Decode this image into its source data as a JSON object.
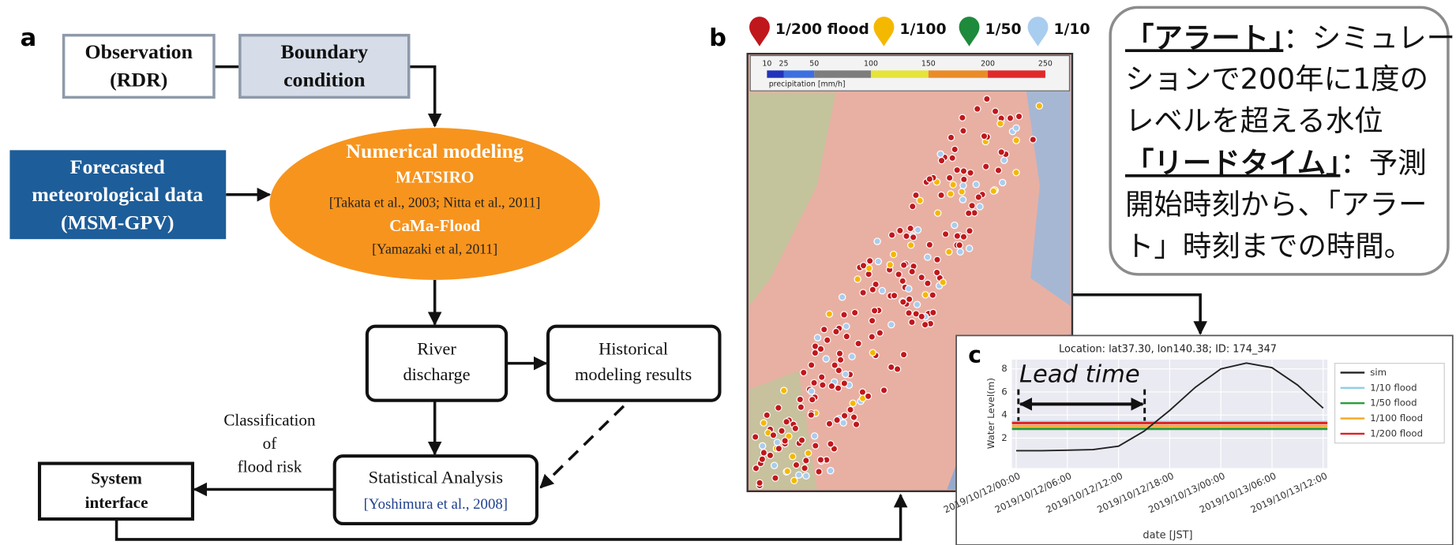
{
  "panel_a": {
    "label": "a",
    "observation": [
      "Observation",
      "(RDR)"
    ],
    "boundary": [
      "Boundary",
      "condition"
    ],
    "forecast": [
      "Forecasted",
      "meteorological data",
      "(MSM-GPV)"
    ],
    "model": {
      "title": "Numerical modeling",
      "model1": "MATSIRO",
      "ref1": "[Takata et al., 2003; Nitta et al., 2011]",
      "model2": "CaMa-Flood",
      "ref2": "[Yamazaki et al, 2011]"
    },
    "river": [
      "River",
      "discharge"
    ],
    "historical": [
      "Historical",
      "modeling results"
    ],
    "statistical": {
      "title": "Statistical Analysis",
      "ref": "[Yoshimura et al., 2008]"
    },
    "system": [
      "System",
      "interface"
    ],
    "classification": [
      "Classification",
      "of",
      "flood risk"
    ]
  },
  "panel_b": {
    "label": "b",
    "legend": [
      {
        "name": "1/200 flood",
        "color": "#c0171c"
      },
      {
        "name": "1/100",
        "color": "#f5b800"
      },
      {
        "name": "1/50",
        "color": "#1e8a3c"
      },
      {
        "name": "1/10",
        "color": "#a9cdef"
      }
    ],
    "colorbar": {
      "ticks": [
        10,
        25,
        50,
        100,
        150,
        200,
        250
      ],
      "label": "precipitation [mm/h]"
    }
  },
  "panel_c": {
    "label": "c",
    "chart": {
      "type": "line",
      "title": "Location: lat37.30, lon140.38;  ID: 174_347",
      "xlabel": "date [JST]",
      "ylabel": "Water Level(m)",
      "annotation": "Lead time",
      "x": [
        0,
        3,
        6,
        9,
        12,
        15,
        18,
        21,
        24,
        27,
        30,
        33,
        36
      ],
      "series": [
        {
          "name": "sim",
          "color": "#222222",
          "values": [
            0.9,
            0.9,
            0.95,
            1.0,
            1.3,
            2.6,
            4.4,
            6.4,
            8.0,
            8.5,
            8.1,
            6.6,
            4.6
          ]
        }
      ],
      "thresholds": [
        {
          "name": "1/10 flood",
          "color": "#8ecfe8",
          "value": 3.4
        },
        {
          "name": "1/50 flood",
          "color": "#2e9a3a",
          "value": 2.8
        },
        {
          "name": "1/100 flood",
          "color": "#f5a623",
          "value": 3.05
        },
        {
          "name": "1/200 flood",
          "color": "#e02020",
          "value": 3.3
        }
      ],
      "xlim": [
        -0.5,
        36.5
      ],
      "ylim": [
        -0.6,
        8.8
      ],
      "yticks": [
        2,
        4,
        6,
        8
      ],
      "xticks": [
        {
          "value": 0,
          "label": "2019/10/12/00:00"
        },
        {
          "value": 6,
          "label": "2019/10/12/06:00"
        },
        {
          "value": 12,
          "label": "2019/10/12/12:00"
        },
        {
          "value": 18,
          "label": "2019/10/12/18:00"
        },
        {
          "value": 24,
          "label": "2019/10/13/00:00"
        },
        {
          "value": 30,
          "label": "2019/10/13/06:00"
        },
        {
          "value": 36,
          "label": "2019/10/13/12:00"
        }
      ]
    }
  },
  "note": {
    "alert_term": "「アラート」",
    "alert_def": [
      "：シミュレー",
      "ションで200年に1度の",
      "レベルを超える水位"
    ],
    "lead_term": "「リードタイム」",
    "lead_def": [
      "：予測",
      "開始時刻から、「アラー",
      "ト」時刻までの時間。"
    ]
  }
}
